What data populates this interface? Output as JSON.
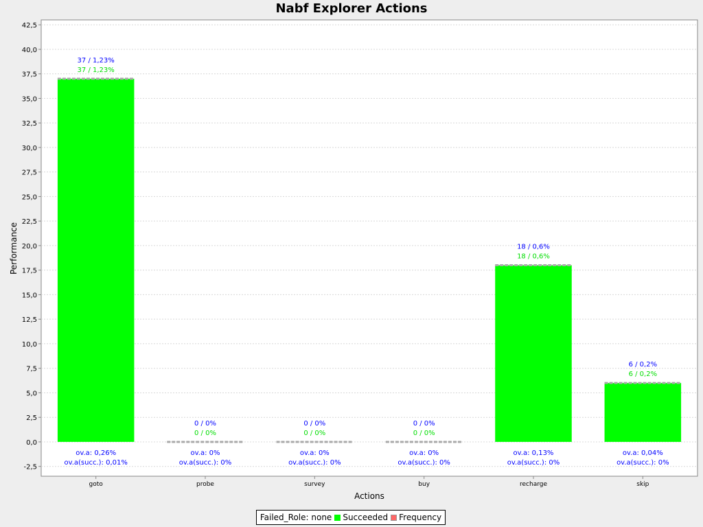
{
  "chart_data": {
    "type": "bar",
    "title": "Nabf Explorer Actions",
    "xlabel": "Actions",
    "ylabel": "Performance",
    "ylim": [
      -3.5,
      43.0
    ],
    "yticks": [
      "42,5",
      "40,0",
      "37,5",
      "35,0",
      "32,5",
      "30,0",
      "27,5",
      "25,0",
      "22,5",
      "20,0",
      "17,5",
      "15,0",
      "12,5",
      "10,0",
      "7,5",
      "5,0",
      "2,5",
      "0,0",
      "-2,5"
    ],
    "ytick_values": [
      42.5,
      40,
      37.5,
      35,
      32.5,
      30,
      27.5,
      25,
      22.5,
      20,
      17.5,
      15,
      12.5,
      10,
      7.5,
      5,
      2.5,
      0,
      -2.5
    ],
    "grid": true,
    "categories": [
      "goto",
      "probe",
      "survey",
      "buy",
      "recharge",
      "skip"
    ],
    "series": [
      {
        "name": "Succeeded",
        "values": [
          37,
          0,
          0,
          0,
          18,
          6
        ],
        "color": "#00ff00"
      },
      {
        "name": "Frequency",
        "values": [
          37,
          0,
          0,
          0,
          18,
          6
        ],
        "color": "#ff6666"
      }
    ],
    "freq_labels": [
      "37 / 1,23%",
      "0 / 0%",
      "0 / 0%",
      "0 / 0%",
      "18 / 0,6%",
      "6 / 0,2%"
    ],
    "succ_labels": [
      "37 / 1,23%",
      "0 / 0%",
      "0 / 0%",
      "0 / 0%",
      "18 / 0,6%",
      "6 / 0,2%"
    ],
    "ova_labels": [
      "ov.a: 0,26%",
      "ov.a: 0%",
      "ov.a: 0%",
      "ov.a: 0%",
      "ov.a: 0,13%",
      "ov.a: 0,04%"
    ],
    "ova_succ_labels": [
      "ov.a(succ.): 0,01%",
      "ov.a(succ.): 0%",
      "ov.a(succ.): 0%",
      "ov.a(succ.): 0%",
      "ov.a(succ.): 0%",
      "ov.a(succ.): 0%"
    ],
    "legend": {
      "position": "bottom",
      "items": [
        "Failed_Role: none",
        "Succeeded",
        "Frequency"
      ]
    },
    "colors": {
      "bar": "#00ff00",
      "freq_label": "#0000ff",
      "succ_label": "#00dd00",
      "bar_top": "#aaaaaa"
    }
  }
}
